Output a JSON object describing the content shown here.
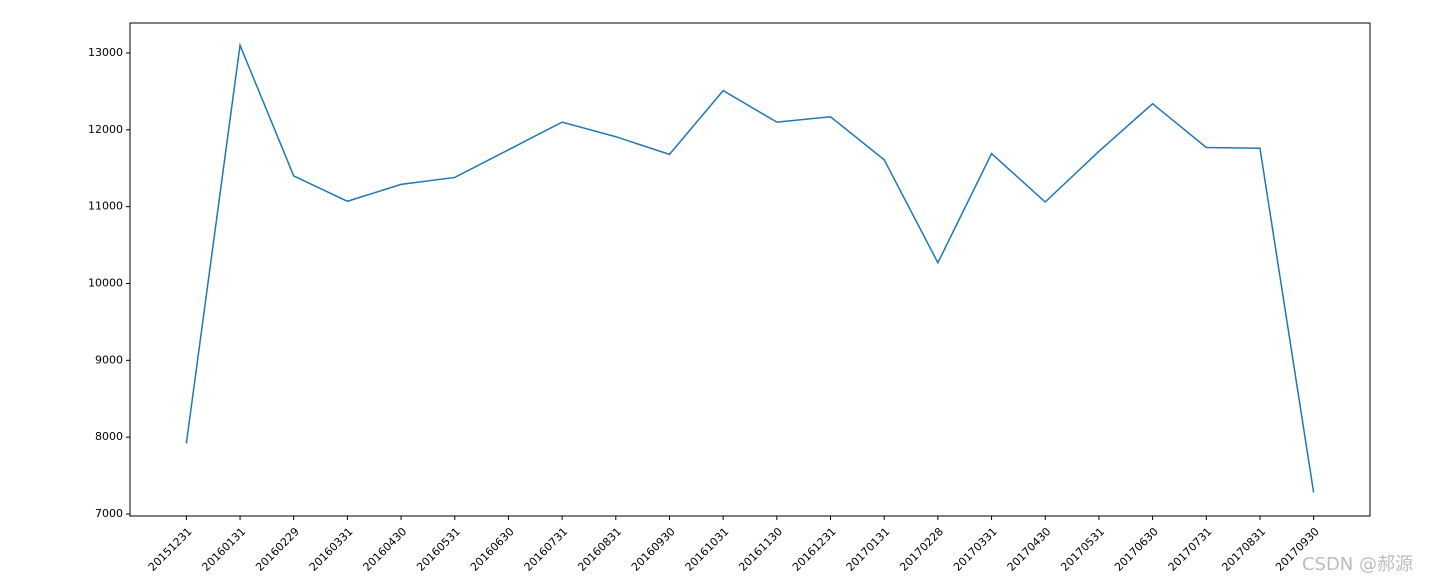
{
  "chart_data": {
    "type": "line",
    "categories": [
      "20151231",
      "20160131",
      "20160229",
      "20160331",
      "20160430",
      "20160531",
      "20160630",
      "20160731",
      "20160831",
      "20160930",
      "20161031",
      "20161130",
      "20161231",
      "20170131",
      "20170228",
      "20170331",
      "20170430",
      "20170531",
      "20170630",
      "20170731",
      "20170831",
      "20170930"
    ],
    "series": [
      {
        "color": "#1f77b4",
        "values": [
          7920,
          13100,
          11400,
          11070,
          11290,
          11380,
          11740,
          12100,
          11910,
          11680,
          12510,
          12100,
          12170,
          11610,
          10270,
          11690,
          11060,
          11720,
          12340,
          11770,
          11760,
          7280
        ]
      }
    ],
    "ylim": [
      6974,
      13390
    ],
    "yticks": [
      7000,
      8000,
      9000,
      10000,
      11000,
      12000,
      13000
    ],
    "grid": false,
    "watermark": "CSDN @郝源"
  }
}
